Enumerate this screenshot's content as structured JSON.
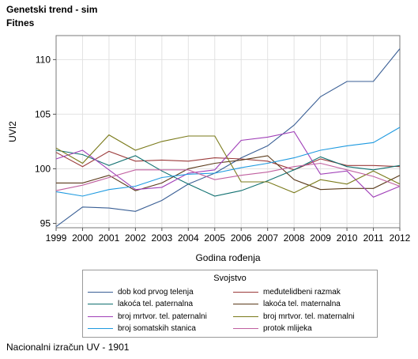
{
  "title": "Genetski trend - sim",
  "subtitle": "Fitnes",
  "footnote": "Nacionalni izračun UV - 1901",
  "chart_data": {
    "type": "line",
    "xlabel": "Godina rođenja",
    "ylabel": "UVI2",
    "x": [
      1999,
      2000,
      2001,
      2002,
      2003,
      2004,
      2005,
      2006,
      2007,
      2008,
      2009,
      2010,
      2011,
      2012
    ],
    "ylim": [
      94.6,
      112.2
    ],
    "yticks": [
      95,
      100,
      105,
      110
    ],
    "grid": true,
    "legend_title": "Svojstvo",
    "legend_position": "bottom",
    "series": [
      {
        "name": "dob kod prvog telenja",
        "color": "#3a5f95",
        "values": [
          94.7,
          96.5,
          96.4,
          96.1,
          97.1,
          98.6,
          99.6,
          101.0,
          102.1,
          104.0,
          106.6,
          108.0,
          108.0,
          111.0
        ]
      },
      {
        "name": "međutelidbeni razmak",
        "color": "#9b3b3b",
        "values": [
          101.5,
          100.2,
          101.6,
          100.7,
          100.8,
          100.7,
          101.0,
          100.9,
          100.7,
          99.9,
          100.9,
          100.3,
          100.3,
          100.2
        ]
      },
      {
        "name": "lakoća tel. paternalna",
        "color": "#107070",
        "values": [
          101.7,
          101.3,
          100.3,
          101.2,
          99.8,
          98.6,
          97.5,
          98.0,
          98.9,
          99.9,
          101.1,
          100.2,
          99.9,
          100.3
        ]
      },
      {
        "name": "lakoća tel. maternalna",
        "color": "#5a3a1a",
        "values": [
          98.7,
          98.7,
          99.4,
          98.0,
          98.7,
          100.0,
          100.5,
          100.8,
          101.2,
          99.0,
          98.1,
          98.2,
          98.2,
          99.4
        ]
      },
      {
        "name": "broj mrtvor. tel. paternalni",
        "color": "#a040b8",
        "values": [
          100.9,
          101.7,
          99.9,
          98.1,
          98.3,
          99.6,
          99.9,
          102.6,
          102.9,
          103.4,
          99.5,
          99.8,
          97.4,
          98.4
        ]
      },
      {
        "name": "broj mrtvor. tel. maternalni",
        "color": "#7a7a1a",
        "values": [
          101.9,
          100.5,
          103.1,
          101.7,
          102.5,
          103.0,
          103.0,
          98.8,
          98.8,
          97.8,
          99.0,
          98.6,
          99.8,
          98.6
        ]
      },
      {
        "name": "broj somatskih stanica",
        "color": "#1e9ae0",
        "values": [
          97.9,
          97.5,
          98.1,
          98.4,
          99.2,
          99.5,
          99.6,
          100.1,
          100.5,
          101.0,
          101.7,
          102.1,
          102.4,
          103.8
        ]
      },
      {
        "name": "protok mlijeka",
        "color": "#c060a0",
        "values": [
          98.0,
          98.5,
          99.2,
          99.9,
          99.9,
          99.9,
          99.0,
          99.4,
          99.7,
          100.2,
          100.5,
          99.9,
          99.3,
          98.4
        ]
      }
    ]
  }
}
